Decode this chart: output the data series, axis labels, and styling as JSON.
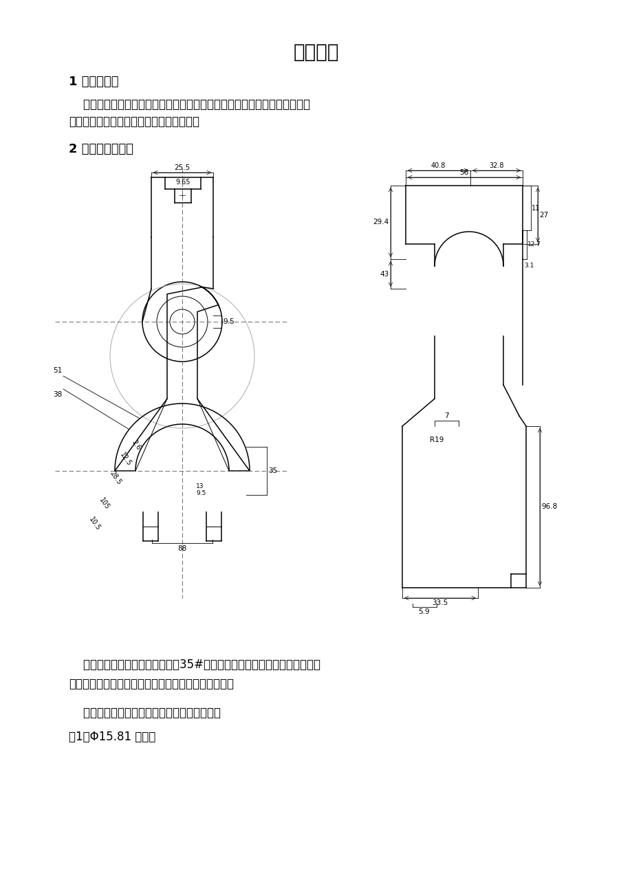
{
  "title": "零件分析",
  "section1_title": "1 零件的作用",
  "section1_text1": "    题目所给定的零件是变速器换档叉，如下图所示。它位于传动轴的端部，主",
  "section1_text2": "要作用是换挡。使变速器获得换档的动力。",
  "section2_title": "2 零件的工艺分析",
  "section3_text1": "    由零件图可知，该零件的材料为35#钢，锻造成型，由零件的尺寸公差选择",
  "section3_text2": "模锻加工成型，保证不加工表面达到要求的尺寸公差。",
  "section3_text3": "    该零件需要加工的表面可大致分为以下四类：",
  "section3_text4": "（1）Φ15.81 的孔。",
  "background_color": "#ffffff",
  "text_color": "#000000",
  "line_color": "#000000"
}
